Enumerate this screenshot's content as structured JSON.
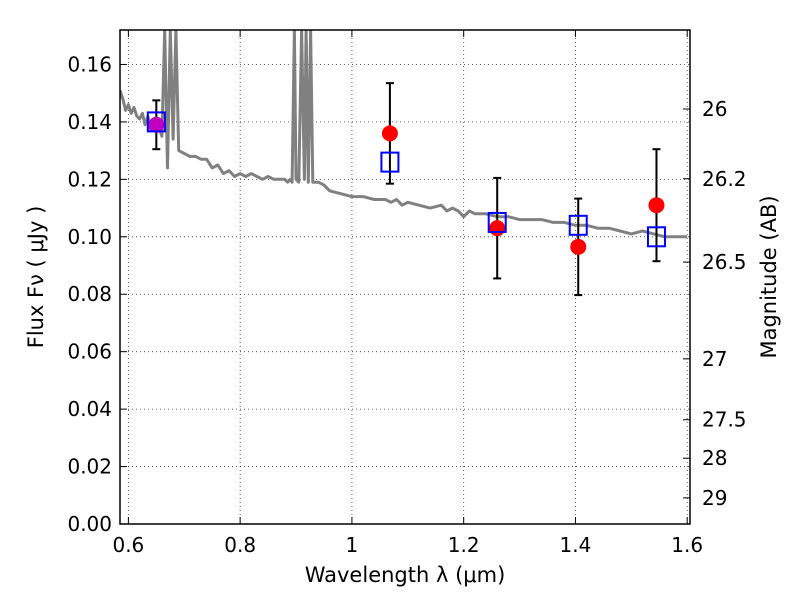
{
  "chart_data": {
    "type": "scatter",
    "xlabel": "Wavelength  λ (μm)",
    "ylabel": "Flux  Fν  ( μJy )",
    "y2label": "Magnitude (AB)",
    "xlim": [
      0.585,
      1.605
    ],
    "ylim": [
      0.0,
      0.172
    ],
    "grid": true,
    "x_ticks": [
      0.6,
      0.8,
      1.0,
      1.2,
      1.4,
      1.6
    ],
    "x_tick_labels": [
      "0.6",
      "0.8",
      "1",
      "1.2",
      "1.4",
      "1.6"
    ],
    "y_ticks": [
      0.0,
      0.02,
      0.04,
      0.06,
      0.08,
      0.1,
      0.12,
      0.14,
      0.16
    ],
    "y_tick_labels": [
      "0.00",
      "0.02",
      "0.04",
      "0.06",
      "0.08",
      "0.10",
      "0.12",
      "0.14",
      "0.16"
    ],
    "y2_ticks": [
      {
        "label": "26",
        "flux": 0.1445
      },
      {
        "label": "26.2",
        "flux": 0.1202
      },
      {
        "label": "26.5",
        "flux": 0.0912
      },
      {
        "label": "27",
        "flux": 0.0575
      },
      {
        "label": "27.5",
        "flux": 0.0363
      },
      {
        "label": "28",
        "flux": 0.0229
      },
      {
        "label": "29",
        "flux": 0.0091
      }
    ],
    "series": [
      {
        "kind": "line",
        "color": "#808080",
        "x": [
          0.585,
          0.59,
          0.595,
          0.6,
          0.605,
          0.61,
          0.615,
          0.62,
          0.625,
          0.63,
          0.635,
          0.64,
          0.645,
          0.65,
          0.655,
          0.66,
          0.665,
          0.67,
          0.675,
          0.68,
          0.685,
          0.69,
          0.7,
          0.71,
          0.72,
          0.73,
          0.74,
          0.75,
          0.76,
          0.77,
          0.78,
          0.79,
          0.8,
          0.81,
          0.82,
          0.83,
          0.84,
          0.85,
          0.86,
          0.87,
          0.88,
          0.885,
          0.89,
          0.893,
          0.897,
          0.9,
          0.905,
          0.91,
          0.915,
          0.918,
          0.922,
          0.926,
          0.93,
          0.94,
          0.95,
          0.96,
          0.98,
          1.0,
          1.02,
          1.04,
          1.06,
          1.07,
          1.08,
          1.09,
          1.1,
          1.12,
          1.14,
          1.16,
          1.17,
          1.18,
          1.19,
          1.2,
          1.21,
          1.22,
          1.24,
          1.26,
          1.28,
          1.3,
          1.32,
          1.34,
          1.36,
          1.38,
          1.4,
          1.42,
          1.44,
          1.46,
          1.48,
          1.5,
          1.52,
          1.54,
          1.56,
          1.58,
          1.6
        ],
        "y": [
          0.151,
          0.148,
          0.144,
          0.146,
          0.143,
          0.145,
          0.142,
          0.141,
          0.143,
          0.139,
          0.142,
          0.137,
          0.139,
          0.14,
          0.138,
          0.135,
          0.172,
          0.124,
          0.172,
          0.134,
          0.172,
          0.13,
          0.129,
          0.128,
          0.128,
          0.127,
          0.127,
          0.124,
          0.125,
          0.122,
          0.123,
          0.121,
          0.122,
          0.121,
          0.122,
          0.121,
          0.12,
          0.121,
          0.12,
          0.12,
          0.12,
          0.119,
          0.12,
          0.119,
          0.172,
          0.12,
          0.119,
          0.172,
          0.12,
          0.172,
          0.119,
          0.172,
          0.119,
          0.119,
          0.118,
          0.116,
          0.115,
          0.114,
          0.114,
          0.113,
          0.113,
          0.112,
          0.113,
          0.111,
          0.112,
          0.111,
          0.11,
          0.111,
          0.109,
          0.11,
          0.109,
          0.107,
          0.109,
          0.108,
          0.108,
          0.107,
          0.107,
          0.106,
          0.106,
          0.106,
          0.105,
          0.105,
          0.104,
          0.104,
          0.103,
          0.103,
          0.102,
          0.101,
          0.102,
          0.101,
          0.1,
          0.1,
          0.1
        ]
      },
      {
        "kind": "points",
        "marker": "circle",
        "color": "#ff0000",
        "x": [
          0.65,
          1.068,
          1.26,
          1.405,
          1.545
        ],
        "y": [
          0.139,
          0.136,
          0.103,
          0.0965,
          0.111
        ],
        "yerr": [
          0.0085,
          0.0175,
          0.0175,
          0.0168,
          0.0195
        ],
        "first_point_color": "#bf00bf"
      },
      {
        "kind": "points",
        "marker": "square",
        "color": "#0000ff",
        "x": [
          0.65,
          1.068,
          1.26,
          1.405,
          1.545
        ],
        "y": [
          0.14,
          0.126,
          0.105,
          0.104,
          0.1
        ]
      }
    ]
  }
}
